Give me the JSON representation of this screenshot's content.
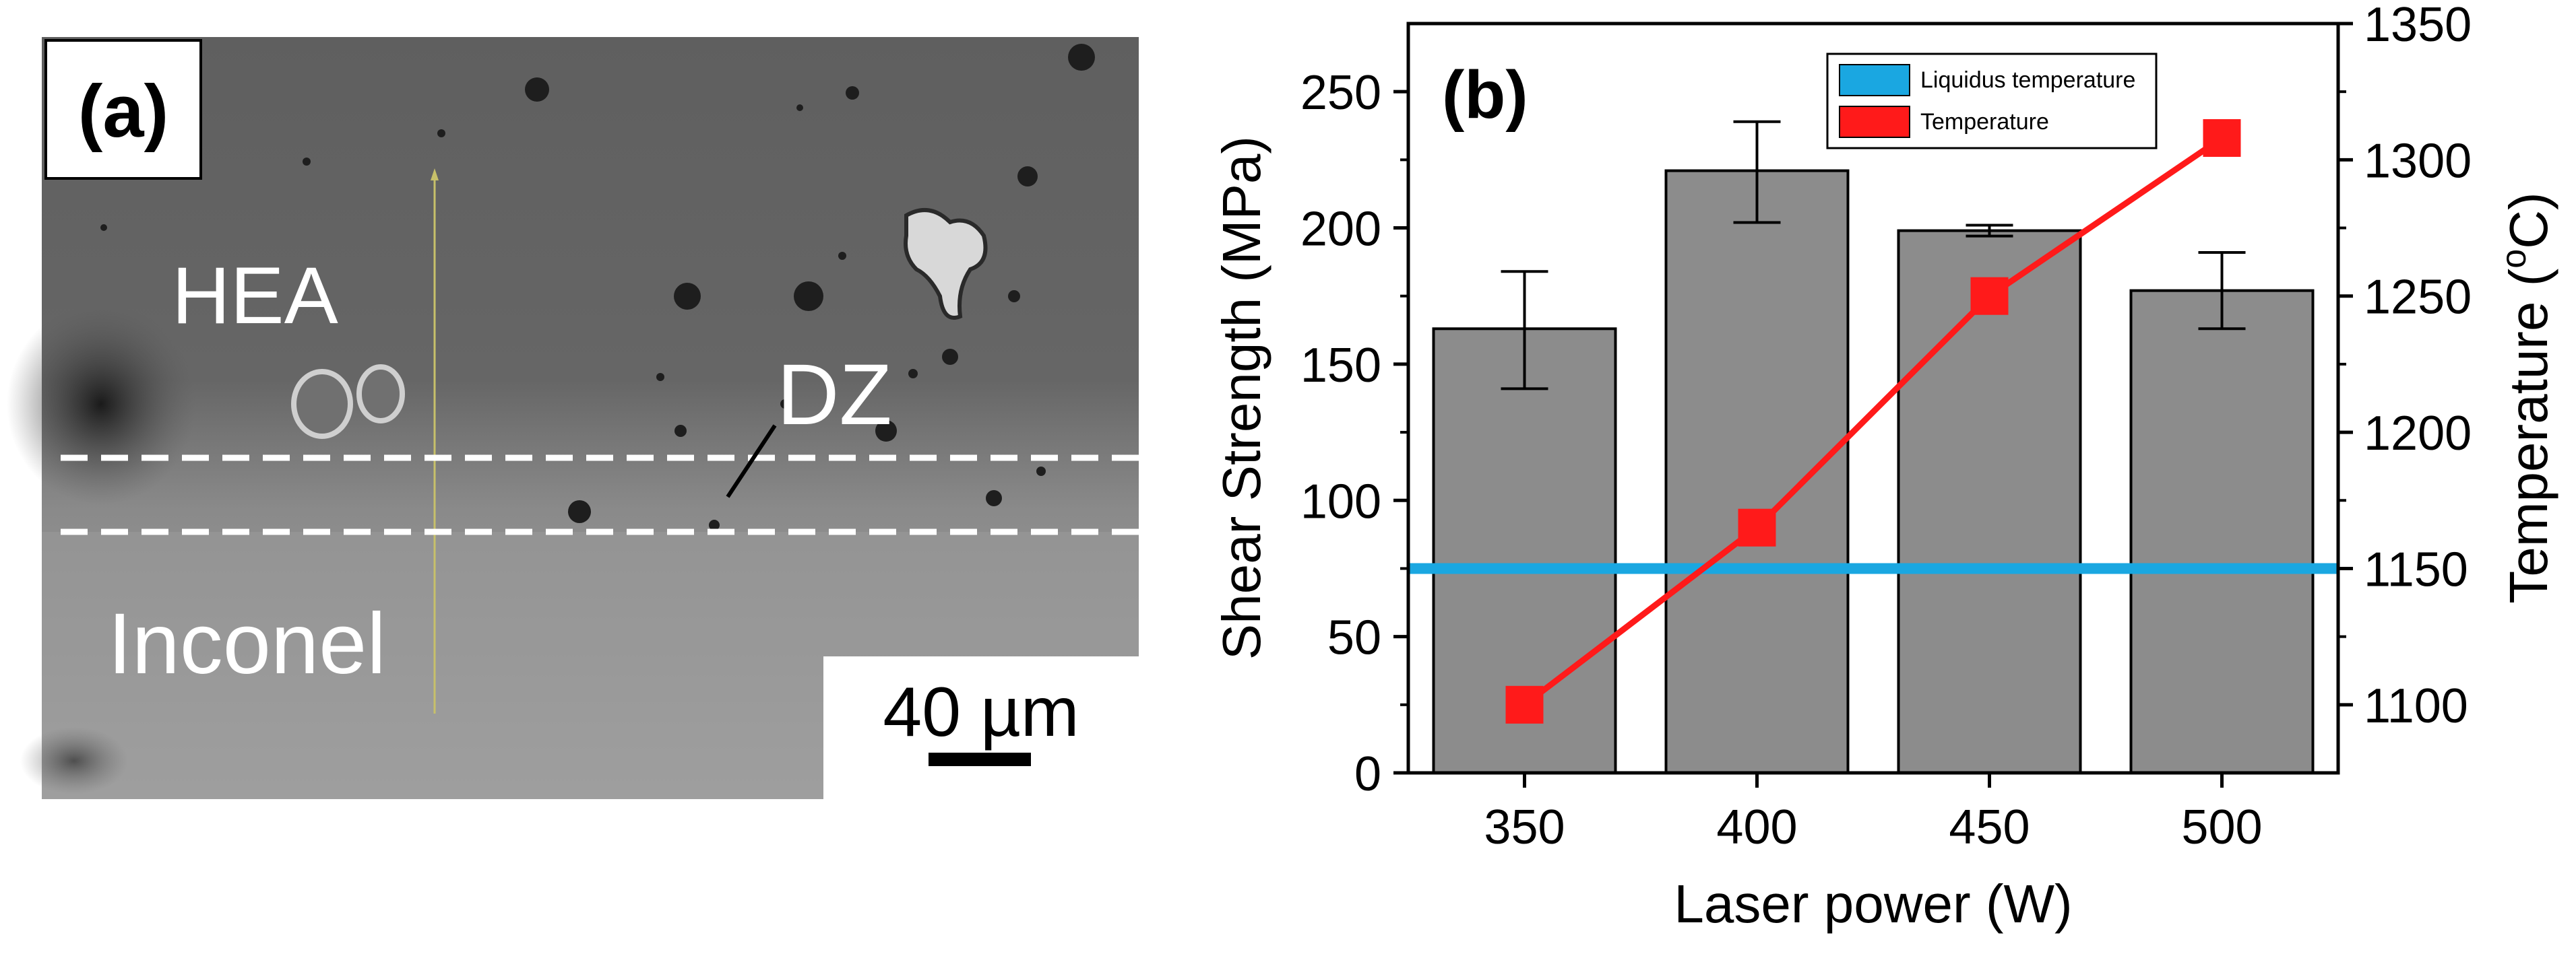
{
  "panel_a": {
    "label": "(a)",
    "region_top": "HEA",
    "region_dz": "DZ",
    "region_bottom": "Inconel",
    "scale_bar": "40 µm",
    "colors": {
      "micrograph_base": "#6a6a6a",
      "lower_region": "#9a9a9a"
    }
  },
  "chart_data": {
    "type": "bar",
    "panel_label": "(b)",
    "categories": [
      "350",
      "400",
      "450",
      "500"
    ],
    "xlabel": "Laser power (W)",
    "ylabel": "Shear Strength (MPa)",
    "y2label_prefix": "Temperature (",
    "y2label_sup": "o",
    "y2label_suffix": "C)",
    "ylim": [
      0,
      275
    ],
    "yticks": [
      0,
      50,
      100,
      150,
      200,
      250
    ],
    "y2lim": [
      1075,
      1350
    ],
    "y2ticks": [
      1100,
      1150,
      1200,
      1250,
      1300,
      1350
    ],
    "series": [
      {
        "name": "Shear strength",
        "kind": "bar",
        "axis": "left",
        "values": [
          163,
          221,
          199,
          177
        ],
        "errors": [
          [
            141,
            184
          ],
          [
            202,
            239
          ],
          [
            197,
            201
          ],
          [
            163,
            191
          ]
        ],
        "color": "#8c8c8c"
      },
      {
        "name": "Temperature",
        "kind": "line",
        "axis": "right",
        "values": [
          1100,
          1165,
          1250,
          1308
        ],
        "color": "#ff1a1a"
      },
      {
        "name": "Liquidus temperature",
        "kind": "hline",
        "axis": "right",
        "value": 1150,
        "color": "#1aa7e1"
      }
    ],
    "legend": {
      "placement": "top-right",
      "entries": [
        {
          "label": "Liquidus temperature",
          "color": "#1aa7e1"
        },
        {
          "label": "Temperature",
          "color": "#ff1a1a"
        }
      ]
    }
  }
}
